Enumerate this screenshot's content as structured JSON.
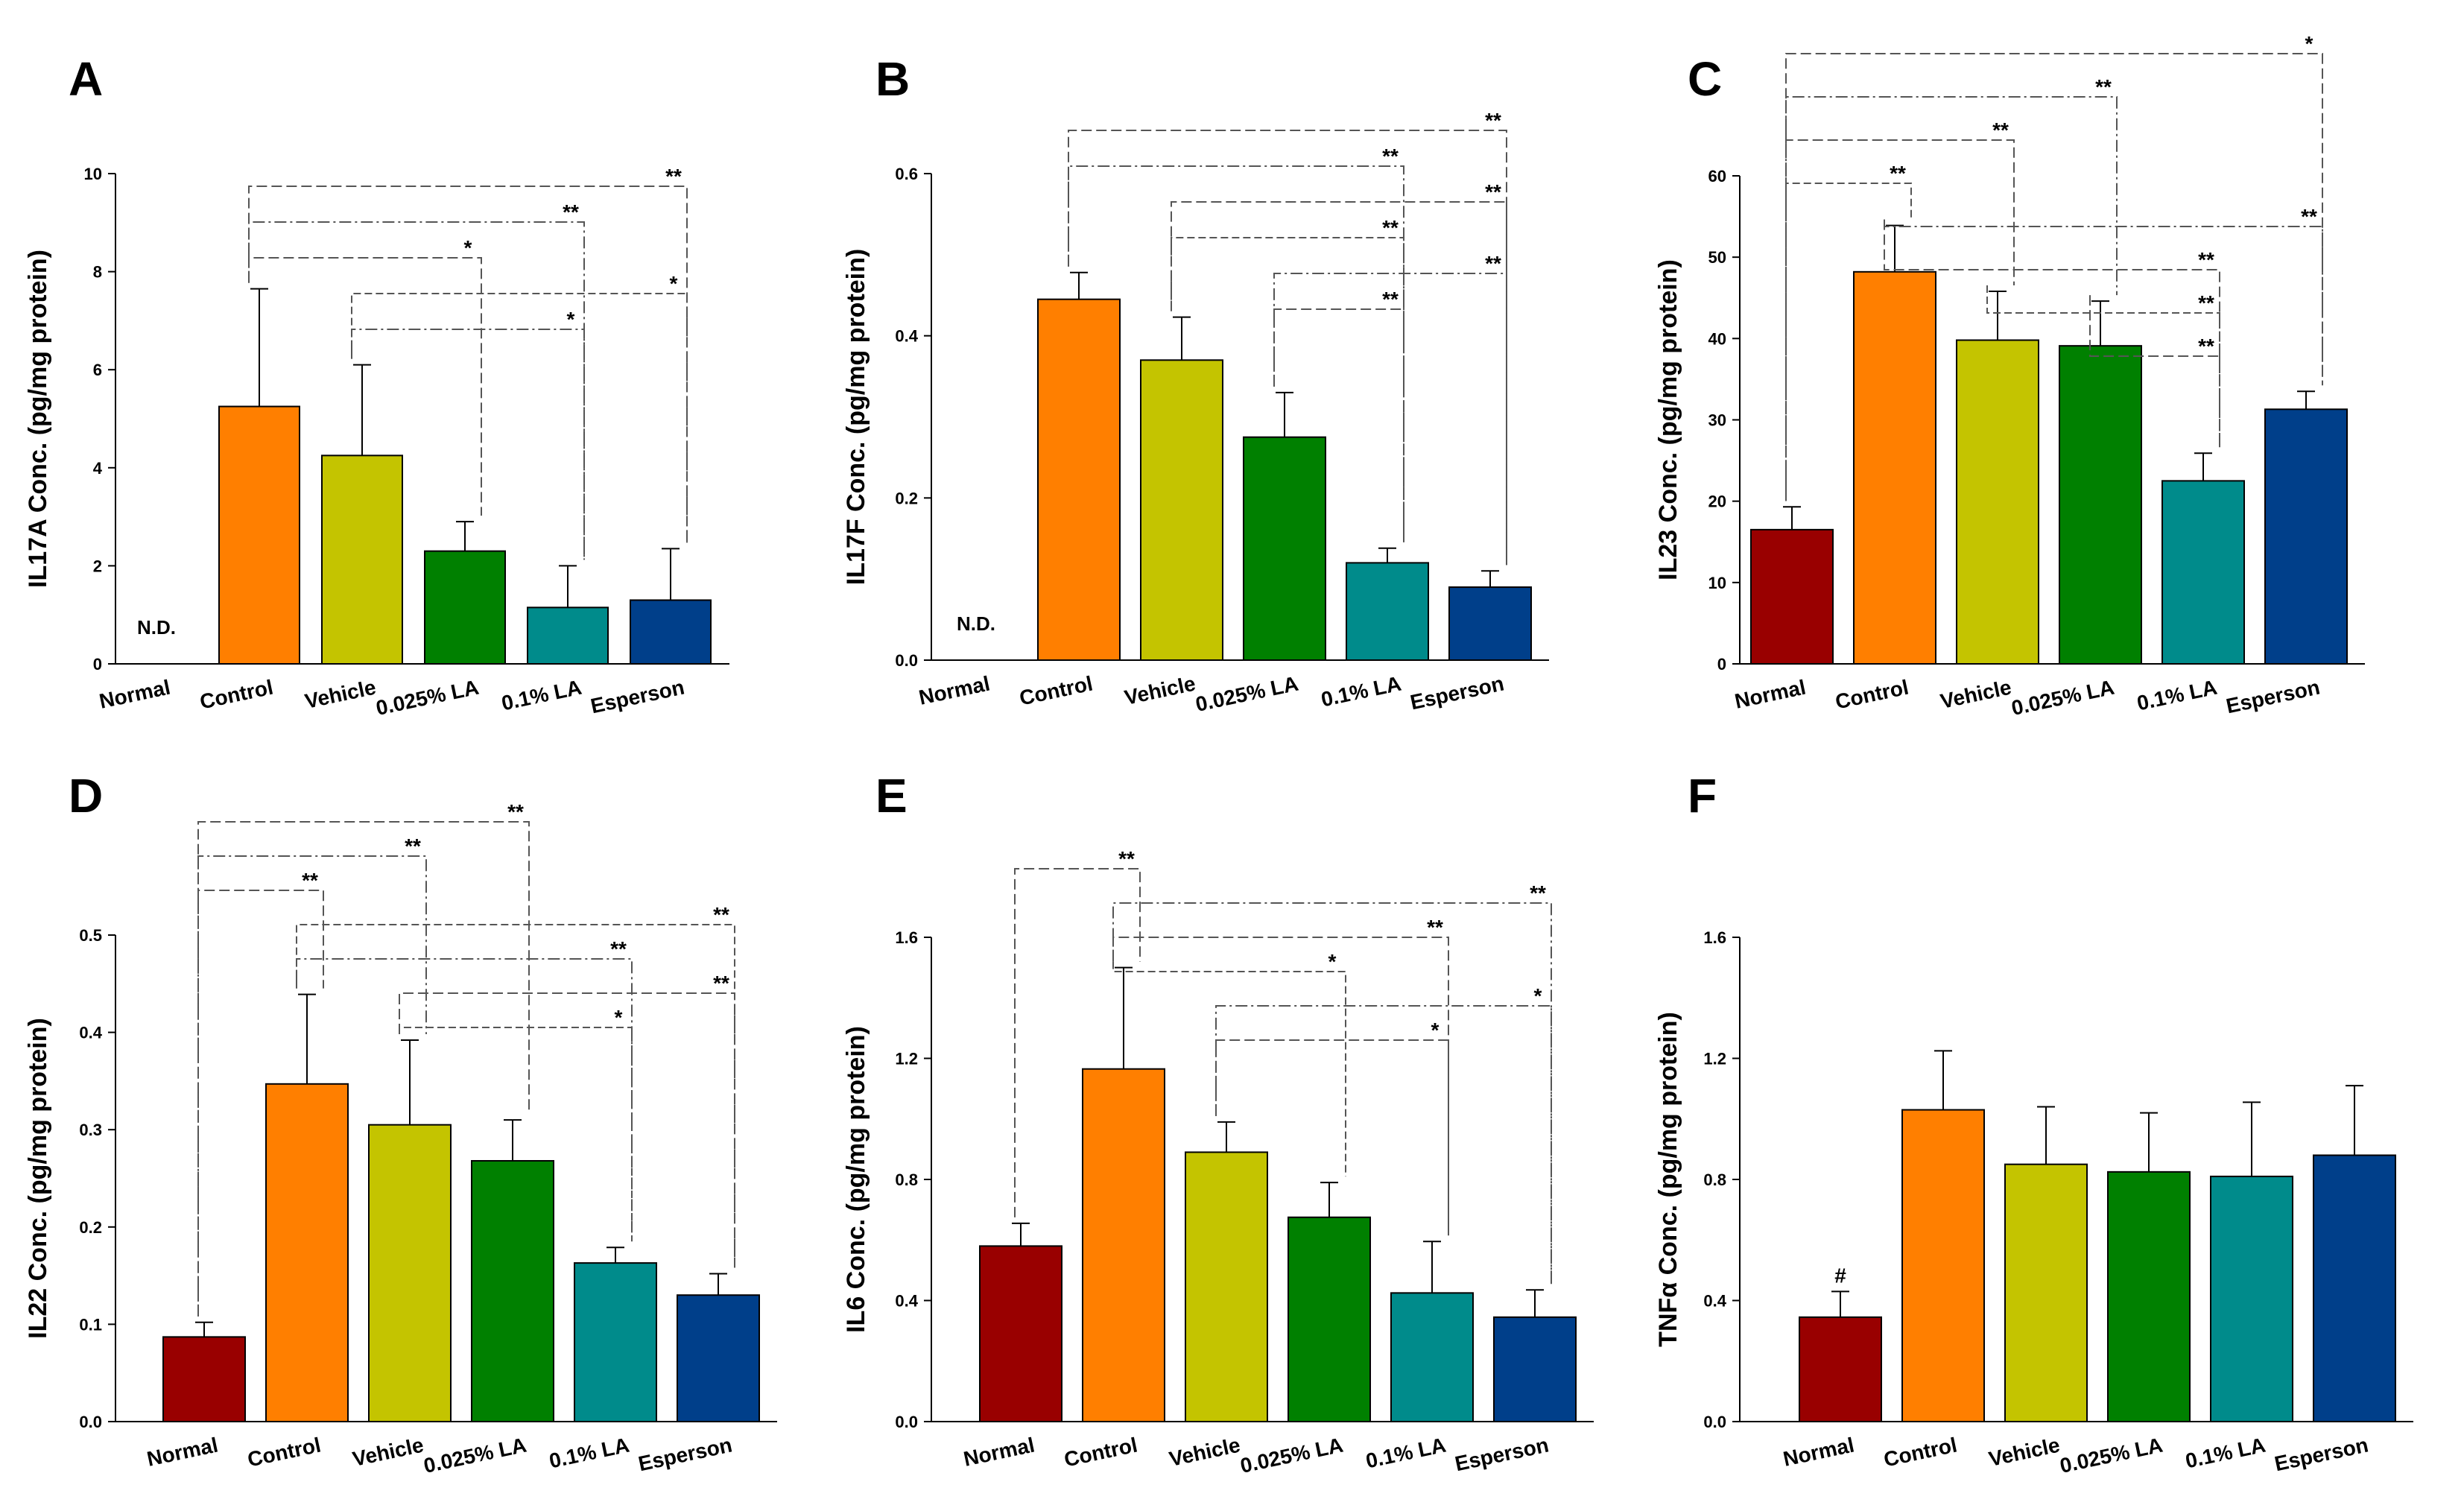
{
  "colors": {
    "Normal": "#990000",
    "Control": "#ff7f00",
    "Vehicle": "#c4c400",
    "0.025% LA": "#008000",
    "0.1% LA": "#008b8b",
    "Esperson": "#003f8a"
  },
  "chart_data": [
    {
      "type": "bar",
      "panel": "A",
      "ylabel": "IL17A Conc. (pg/mg protein)",
      "ylim": [
        0,
        10
      ],
      "yticks": [
        "0",
        "2",
        "4",
        "6",
        "8",
        "10"
      ],
      "categories": [
        "Normal",
        "Control",
        "Vehicle",
        "0.025% LA",
        "0.1% LA",
        "Esperson"
      ],
      "values": [
        null,
        5.25,
        4.25,
        2.3,
        1.15,
        1.3
      ],
      "errors": [
        null,
        2.4,
        1.85,
        0.6,
        0.85,
        1.05
      ],
      "annotations": [
        {
          "index": 0,
          "text": "N.D."
        }
      ],
      "comparisons": [
        {
          "from": 1,
          "to": 5,
          "text": "**"
        },
        {
          "from": 1,
          "to": 4,
          "text": "**"
        },
        {
          "from": 1,
          "to": 3,
          "text": "*"
        },
        {
          "from": 2,
          "to": 5,
          "text": "*"
        },
        {
          "from": 2,
          "to": 4,
          "text": "*"
        }
      ]
    },
    {
      "type": "bar",
      "panel": "B",
      "ylabel": "IL17F Conc. (pg/mg protein)",
      "ylim": [
        0,
        0.6
      ],
      "yticks": [
        "0.0",
        "0.2",
        "0.4",
        "0.6"
      ],
      "categories": [
        "Normal",
        "Control",
        "Vehicle",
        "0.025% LA",
        "0.1% LA",
        "Esperson"
      ],
      "values": [
        null,
        0.445,
        0.37,
        0.275,
        0.12,
        0.09
      ],
      "errors": [
        null,
        0.033,
        0.053,
        0.055,
        0.018,
        0.02
      ],
      "annotations": [
        {
          "index": 0,
          "text": "N.D."
        }
      ],
      "comparisons": [
        {
          "from": 1,
          "to": 5,
          "text": "**"
        },
        {
          "from": 1,
          "to": 4,
          "text": "**"
        },
        {
          "from": 2,
          "to": 5,
          "text": "**"
        },
        {
          "from": 2,
          "to": 4,
          "text": "**"
        },
        {
          "from": 3,
          "to": 5,
          "text": "**"
        },
        {
          "from": 3,
          "to": 4,
          "text": "**"
        }
      ]
    },
    {
      "type": "bar",
      "panel": "C",
      "ylabel": "IL23 Conc. (pg/mg protein)",
      "ylim": [
        0,
        60
      ],
      "yticks": [
        "0",
        "10",
        "20",
        "30",
        "40",
        "50",
        "60"
      ],
      "categories": [
        "Normal",
        "Control",
        "Vehicle",
        "0.025% LA",
        "0.1% LA",
        "Esperson"
      ],
      "values": [
        16.5,
        48.2,
        39.8,
        39.1,
        22.5,
        31.3
      ],
      "errors": [
        2.8,
        5.7,
        6.0,
        5.5,
        3.4,
        2.2
      ],
      "annotations": [],
      "comparisons": [
        {
          "from": 0,
          "to": 5,
          "text": "*"
        },
        {
          "from": 0,
          "to": 3,
          "text": "**"
        },
        {
          "from": 0,
          "to": 2,
          "text": "**"
        },
        {
          "from": 0,
          "to": 1,
          "text": "**"
        },
        {
          "from": 1,
          "to": 5,
          "text": "**"
        },
        {
          "from": 1,
          "to": 4,
          "text": "**"
        },
        {
          "from": 2,
          "to": 4,
          "text": "**"
        },
        {
          "from": 3,
          "to": 4,
          "text": "**"
        }
      ]
    },
    {
      "type": "bar",
      "panel": "D",
      "ylabel": "IL22 Conc. (pg/mg protein)",
      "ylim": [
        0,
        0.5
      ],
      "yticks": [
        "0.0",
        "0.1",
        "0.2",
        "0.3",
        "0.4",
        "0.5"
      ],
      "categories": [
        "Normal",
        "Control",
        "Vehicle",
        "0.025% LA",
        "0.1% LA",
        "Esperson"
      ],
      "values": [
        0.087,
        0.347,
        0.305,
        0.268,
        0.163,
        0.13
      ],
      "errors": [
        0.015,
        0.092,
        0.087,
        0.042,
        0.016,
        0.022
      ],
      "annotations": [],
      "comparisons": [
        {
          "from": 0,
          "to": 3,
          "text": "**"
        },
        {
          "from": 0,
          "to": 2,
          "text": "**"
        },
        {
          "from": 0,
          "to": 1,
          "text": "**"
        },
        {
          "from": 1,
          "to": 5,
          "text": "**"
        },
        {
          "from": 1,
          "to": 4,
          "text": "**"
        },
        {
          "from": 2,
          "to": 5,
          "text": "**"
        },
        {
          "from": 2,
          "to": 4,
          "text": "*"
        }
      ]
    },
    {
      "type": "bar",
      "panel": "E",
      "ylabel": "IL6 Conc. (pg/mg protein)",
      "ylim": [
        0,
        1.6
      ],
      "yticks": [
        "0.0",
        "0.4",
        "0.8",
        "1.2",
        "1.6"
      ],
      "categories": [
        "Normal",
        "Control",
        "Vehicle",
        "0.025% LA",
        "0.1% LA",
        "Esperson"
      ],
      "values": [
        0.58,
        1.165,
        0.89,
        0.675,
        0.425,
        0.345
      ],
      "errors": [
        0.075,
        0.335,
        0.1,
        0.115,
        0.17,
        0.09
      ],
      "annotations": [],
      "comparisons": [
        {
          "from": 0,
          "to": 1,
          "text": "**"
        },
        {
          "from": 1,
          "to": 5,
          "text": "**"
        },
        {
          "from": 1,
          "to": 4,
          "text": "**"
        },
        {
          "from": 1,
          "to": 3,
          "text": "*"
        },
        {
          "from": 2,
          "to": 5,
          "text": "*"
        },
        {
          "from": 2,
          "to": 4,
          "text": "*"
        }
      ]
    },
    {
      "type": "bar",
      "panel": "F",
      "ylabel": "TNFα Conc. (pg/mg protein)",
      "ylim": [
        0,
        1.6
      ],
      "yticks": [
        "0.0",
        "0.4",
        "0.8",
        "1.2",
        "1.6"
      ],
      "categories": [
        "Normal",
        "Control",
        "Vehicle",
        "0.025% LA",
        "0.1% LA",
        "Esperson"
      ],
      "values": [
        0.345,
        1.03,
        0.85,
        0.825,
        0.81,
        0.88
      ],
      "errors": [
        0.085,
        0.195,
        0.19,
        0.195,
        0.245,
        0.23
      ],
      "annotations": [
        {
          "index": 0,
          "text": "#"
        }
      ],
      "comparisons": []
    }
  ]
}
